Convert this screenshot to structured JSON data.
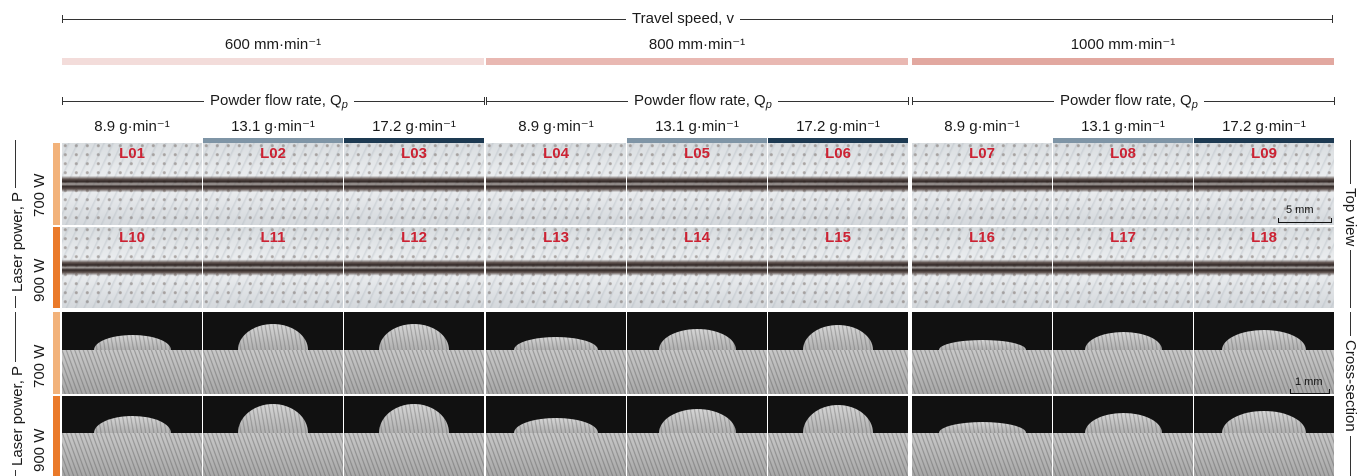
{
  "travel_speed_header": "Travel speed, v",
  "travel_speeds": [
    "600 mm·min⁻¹",
    "800 mm·min⁻¹",
    "1000 mm·min⁻¹"
  ],
  "powder_header": "Powder flow rate, Q",
  "powder_header_sub": "p",
  "flow_rates": [
    "8.9 g·min⁻¹",
    "13.1 g·min⁻¹",
    "17.2 g·min⁻¹"
  ],
  "laser_power_header": "Laser power, P",
  "laser_powers": [
    "700 W",
    "900 W"
  ],
  "view_top": "Top view",
  "view_cross": "Cross-section",
  "scale_top": "5 mm",
  "scale_cross": "1 mm",
  "sample_labels": [
    [
      "L01",
      "L02",
      "L03",
      "L04",
      "L05",
      "L06",
      "L07",
      "L08",
      "L09"
    ],
    [
      "L10",
      "L11",
      "L12",
      "L13",
      "L14",
      "L15",
      "L16",
      "L17",
      "L18"
    ]
  ],
  "colors": {
    "label_red": "#cc2233",
    "speed_600": "#f3dcda",
    "speed_800": "#e9b8b2",
    "speed_1000": "#e2a8a0",
    "flow_8_9": "#ffffff",
    "flow_13_1": "#7f95a6",
    "flow_17_2": "#1d3a52",
    "power_700": "#f2b27a",
    "power_900": "#ea7a2a"
  }
}
